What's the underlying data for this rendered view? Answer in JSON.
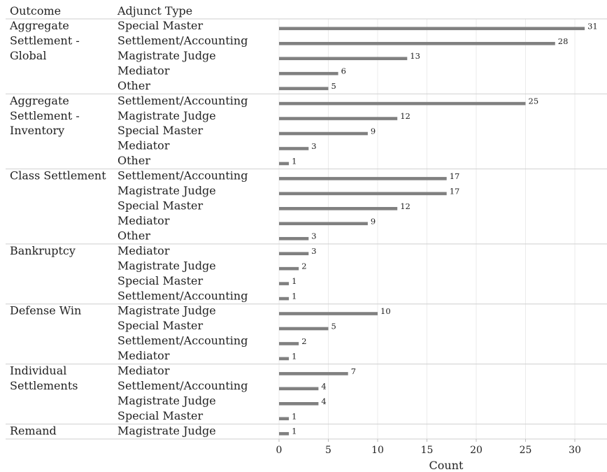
{
  "chart_data": {
    "type": "bar",
    "orientation": "horizontal",
    "header": {
      "outcome": "Outcome",
      "adjunct": "Adjunct Type"
    },
    "xlabel": "Count",
    "xlim": [
      0,
      31
    ],
    "xticks": [
      0,
      5,
      10,
      15,
      20,
      25,
      30
    ],
    "grid": true,
    "bar_color": "#808080",
    "groups": [
      {
        "outcome": [
          "Aggregate",
          "Settlement -",
          "Global"
        ],
        "rows": [
          {
            "adjunct": "Special Master",
            "value": 31
          },
          {
            "adjunct": "Settlement/Accounting",
            "value": 28
          },
          {
            "adjunct": "Magistrate Judge",
            "value": 13
          },
          {
            "adjunct": "Mediator",
            "value": 6
          },
          {
            "adjunct": "Other",
            "value": 5
          }
        ]
      },
      {
        "outcome": [
          "Aggregate",
          "Settlement -",
          "Inventory"
        ],
        "rows": [
          {
            "adjunct": "Settlement/Accounting",
            "value": 25
          },
          {
            "adjunct": "Magistrate Judge",
            "value": 12
          },
          {
            "adjunct": "Special Master",
            "value": 9
          },
          {
            "adjunct": "Mediator",
            "value": 3
          },
          {
            "adjunct": "Other",
            "value": 1
          }
        ]
      },
      {
        "outcome": [
          "Class Settlement"
        ],
        "rows": [
          {
            "adjunct": "Settlement/Accounting",
            "value": 17
          },
          {
            "adjunct": "Magistrate Judge",
            "value": 17
          },
          {
            "adjunct": "Special Master",
            "value": 12
          },
          {
            "adjunct": "Mediator",
            "value": 9
          },
          {
            "adjunct": "Other",
            "value": 3
          }
        ]
      },
      {
        "outcome": [
          "Bankruptcy"
        ],
        "rows": [
          {
            "adjunct": "Mediator",
            "value": 3
          },
          {
            "adjunct": "Magistrate Judge",
            "value": 2
          },
          {
            "adjunct": "Special Master",
            "value": 1
          },
          {
            "adjunct": "Settlement/Accounting",
            "value": 1
          }
        ]
      },
      {
        "outcome": [
          "Defense Win"
        ],
        "rows": [
          {
            "adjunct": "Magistrate Judge",
            "value": 10
          },
          {
            "adjunct": "Special Master",
            "value": 5
          },
          {
            "adjunct": "Settlement/Accounting",
            "value": 2
          },
          {
            "adjunct": "Mediator",
            "value": 1
          }
        ]
      },
      {
        "outcome": [
          "Individual",
          "Settlements"
        ],
        "rows": [
          {
            "adjunct": "Mediator",
            "value": 7
          },
          {
            "adjunct": "Settlement/Accounting",
            "value": 4
          },
          {
            "adjunct": "Magistrate Judge",
            "value": 4
          },
          {
            "adjunct": "Special Master",
            "value": 1
          }
        ]
      },
      {
        "outcome": [
          "Remand"
        ],
        "rows": [
          {
            "adjunct": "Magistrate Judge",
            "value": 1
          }
        ]
      }
    ]
  }
}
